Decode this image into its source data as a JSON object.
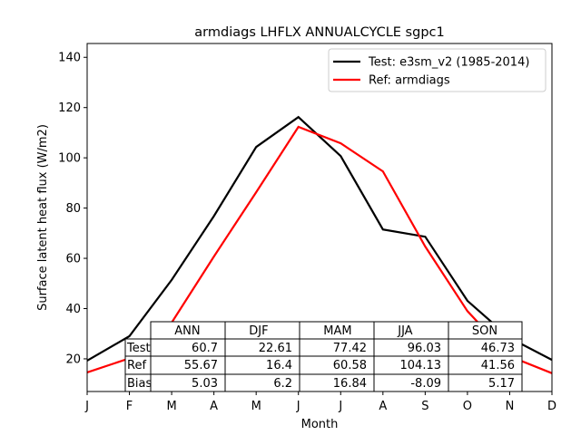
{
  "chart_data": {
    "type": "line",
    "title": "armdiags LHFLX ANNUALCYCLE sgpc1",
    "xlabel": "Month",
    "ylabel": "Surface latent heat flux (W/m2)",
    "x": [
      "J",
      "F",
      "M",
      "A",
      "M",
      "J",
      "J",
      "A",
      "S",
      "O",
      "N",
      "D"
    ],
    "xlim": [
      0,
      11
    ],
    "ylim": [
      7,
      145.5
    ],
    "yticks": [
      20,
      40,
      60,
      80,
      100,
      120,
      140
    ],
    "grid": false,
    "legend_position": "top-right",
    "series": [
      {
        "name": "Test: e3sm_v2 (1985-2014)",
        "color": "#000000",
        "values": [
          19.3,
          29.0,
          51.4,
          76.8,
          104.3,
          116.2,
          100.7,
          71.5,
          68.6,
          43.1,
          28.3,
          19.6
        ]
      },
      {
        "name": "Ref: armdiags",
        "color": "#ff0000",
        "values": [
          14.6,
          20.2,
          34.4,
          60.7,
          86.3,
          112.3,
          105.8,
          94.6,
          64.7,
          39.0,
          21.0,
          14.3
        ]
      }
    ],
    "table": {
      "columns": [
        "ANN",
        "DJF",
        "MAM",
        "JJA",
        "SON"
      ],
      "rows": [
        {
          "label": "Test",
          "values": [
            "60.7",
            "22.61",
            "77.42",
            "96.03",
            "46.73"
          ]
        },
        {
          "label": "Ref",
          "values": [
            "55.67",
            "16.4",
            "60.58",
            "104.13",
            "41.56"
          ]
        },
        {
          "label": "Bias",
          "values": [
            "5.03",
            "6.2",
            "16.84",
            "-8.09",
            "5.17"
          ]
        }
      ]
    }
  }
}
